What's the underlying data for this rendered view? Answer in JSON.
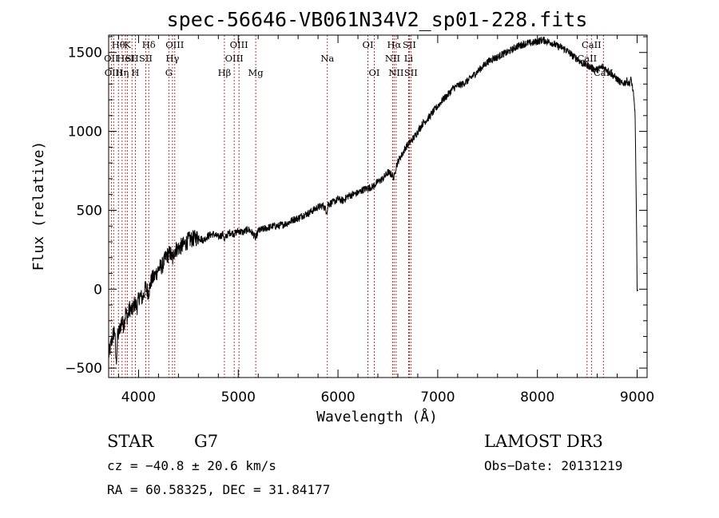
{
  "chart_data": {
    "type": "line",
    "title": "spec-56646-VB061N34V2_sp01-228.fits",
    "xlabel": "Wavelength (Å)",
    "ylabel": "Flux (relative)",
    "xlim": [
      3700,
      9100
    ],
    "ylim": [
      -560,
      1610
    ],
    "xticks": [
      {
        "value": 4000,
        "label": "4000"
      },
      {
        "value": 5000,
        "label": "5000"
      },
      {
        "value": 6000,
        "label": "6000"
      },
      {
        "value": 7000,
        "label": "7000"
      },
      {
        "value": 8000,
        "label": "8000"
      },
      {
        "value": 9000,
        "label": "9000"
      }
    ],
    "yticks": [
      {
        "value": -500,
        "label": "−500"
      },
      {
        "value": 0,
        "label": "0"
      },
      {
        "value": 500,
        "label": "500"
      },
      {
        "value": 1000,
        "label": "1000"
      },
      {
        "value": 1500,
        "label": "1500"
      }
    ],
    "line_color": "#000000",
    "marker_color": "#b22222",
    "series": [
      {
        "name": "flux",
        "x": [
          3700,
          3715,
          3730,
          3745,
          3760,
          3775,
          3790,
          3810,
          3830,
          3850,
          3870,
          3890,
          3910,
          3935,
          3960,
          3985,
          4010,
          4040,
          4070,
          4100,
          4130,
          4160,
          4200,
          4240,
          4280,
          4320,
          4340,
          4360,
          4400,
          4450,
          4500,
          4550,
          4600,
          4650,
          4700,
          4750,
          4800,
          4850,
          4861,
          4880,
          4920,
          4960,
          5000,
          5050,
          5100,
          5150,
          5175,
          5200,
          5250,
          5300,
          5350,
          5400,
          5450,
          5500,
          5550,
          5600,
          5650,
          5700,
          5750,
          5800,
          5850,
          5893,
          5900,
          5950,
          6000,
          6050,
          6100,
          6150,
          6200,
          6250,
          6300,
          6350,
          6400,
          6450,
          6500,
          6530,
          6550,
          6563,
          6575,
          6590,
          6610,
          6640,
          6680,
          6720,
          6760,
          6800,
          6850,
          6900,
          6950,
          7000,
          7050,
          7100,
          7150,
          7200,
          7250,
          7300,
          7350,
          7400,
          7450,
          7500,
          7550,
          7600,
          7650,
          7700,
          7750,
          7800,
          7850,
          7900,
          7950,
          8000,
          8050,
          8100,
          8150,
          8200,
          8250,
          8300,
          8350,
          8400,
          8450,
          8500,
          8550,
          8600,
          8650,
          8700,
          8750,
          8800,
          8850,
          8900,
          8920,
          8940,
          8960,
          8980,
          8995,
          9000,
          9010
        ],
        "y": [
          -420,
          -380,
          -330,
          -290,
          -250,
          -470,
          -300,
          -260,
          -200,
          -230,
          -150,
          -180,
          -120,
          -140,
          -90,
          -110,
          -40,
          -60,
          10,
          -20,
          60,
          80,
          130,
          150,
          210,
          230,
          180,
          250,
          260,
          280,
          310,
          320,
          330,
          310,
          340,
          350,
          330,
          350,
          300,
          340,
          360,
          350,
          370,
          360,
          380,
          350,
          320,
          370,
          380,
          390,
          400,
          400,
          410,
          420,
          440,
          450,
          470,
          480,
          500,
          520,
          530,
          490,
          540,
          550,
          570,
          560,
          590,
          600,
          610,
          630,
          640,
          650,
          680,
          700,
          740,
          730,
          720,
          700,
          760,
          790,
          820,
          850,
          900,
          930,
          960,
          1000,
          1050,
          1080,
          1120,
          1160,
          1200,
          1230,
          1270,
          1290,
          1300,
          1320,
          1350,
          1380,
          1410,
          1440,
          1460,
          1470,
          1490,
          1500,
          1520,
          1540,
          1550,
          1560,
          1560,
          1570,
          1580,
          1570,
          1560,
          1540,
          1530,
          1510,
          1480,
          1460,
          1430,
          1420,
          1400,
          1390,
          1410,
          1390,
          1360,
          1330,
          1300,
          1320,
          1300,
          1330,
          1250,
          1110,
          350,
          -10,
          -5
        ]
      }
    ],
    "lines": [
      {
        "wl": 3727,
        "row": 1,
        "text": "OII"
      },
      {
        "wl": 3750,
        "row": 2,
        "text": "OIII"
      },
      {
        "wl": 3798,
        "row": 0,
        "text": "Hθ"
      },
      {
        "wl": 3835,
        "row": 2,
        "text": "Hη"
      },
      {
        "wl": 3868,
        "row": 1,
        "text": "HeI"
      },
      {
        "wl": 3889,
        "row": 0,
        "text": "K"
      },
      {
        "wl": 3934,
        "row": 1,
        "text": "SII"
      },
      {
        "wl": 3968,
        "row": 2,
        "text": "H"
      },
      {
        "wl": 4072,
        "row": 1,
        "text": "SII"
      },
      {
        "wl": 4102,
        "row": 0,
        "text": "Hδ"
      },
      {
        "wl": 4304,
        "row": 2,
        "text": "G"
      },
      {
        "wl": 4340,
        "row": 1,
        "text": "Hγ"
      },
      {
        "wl": 4363,
        "row": 0,
        "text": "OIII"
      },
      {
        "wl": 4861,
        "row": 2,
        "text": "Hβ"
      },
      {
        "wl": 4959,
        "row": 1,
        "text": "OIII"
      },
      {
        "wl": 5007,
        "row": 0,
        "text": "OIII"
      },
      {
        "wl": 5175,
        "row": 2,
        "text": "Mg"
      },
      {
        "wl": 5893,
        "row": 1,
        "text": "Na"
      },
      {
        "wl": 6300,
        "row": 0,
        "text": "OI"
      },
      {
        "wl": 6364,
        "row": 2,
        "text": "OI"
      },
      {
        "wl": 6548,
        "row": 1,
        "text": "NII"
      },
      {
        "wl": 6563,
        "row": 0,
        "text": "Hα"
      },
      {
        "wl": 6583,
        "row": 2,
        "text": "NII"
      },
      {
        "wl": 6708,
        "row": 1,
        "text": "Li"
      },
      {
        "wl": 6716,
        "row": 0,
        "text": "SII"
      },
      {
        "wl": 6731,
        "row": 2,
        "text": "SII"
      },
      {
        "wl": 8498,
        "row": 1,
        "text": "CaII"
      },
      {
        "wl": 8542,
        "row": 0,
        "text": "CaII"
      },
      {
        "wl": 8662,
        "row": 2,
        "text": "CaII"
      }
    ]
  },
  "footer": {
    "class_label": "STAR",
    "subclass": "G7",
    "survey": "LAMOST DR3",
    "redshift": "cz = −40.8 ± 20.6 km/s",
    "obs_date": "Obs−Date: 20131219",
    "coords": "RA =  60.58325, DEC =  31.84177"
  }
}
